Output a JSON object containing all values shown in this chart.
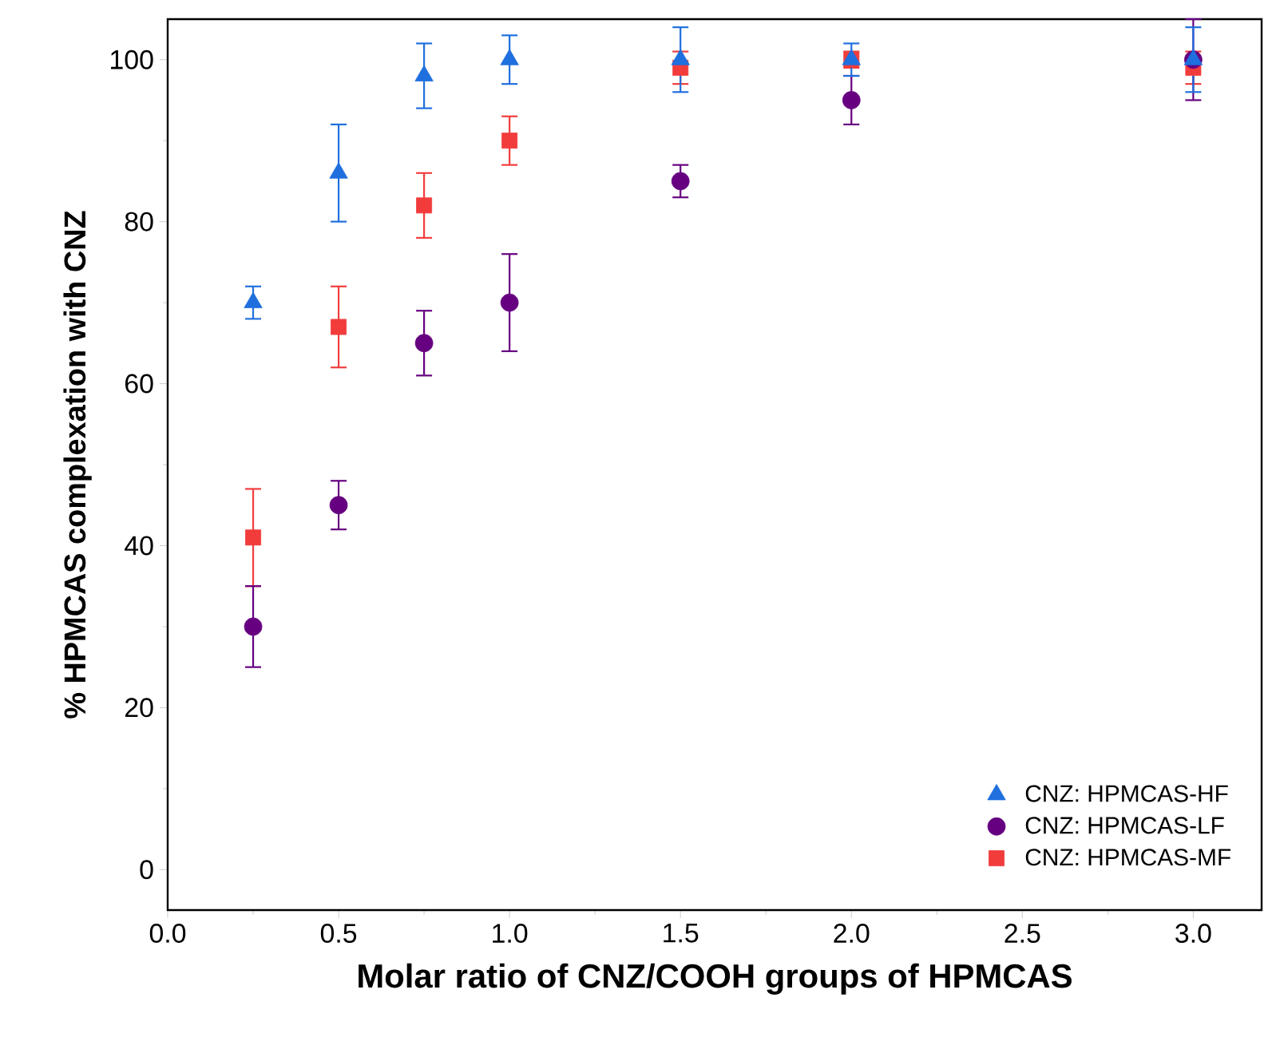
{
  "chart_data": {
    "type": "scatter",
    "xlabel": "Molar ratio of CNZ/COOH groups of HPMCAS",
    "ylabel": "% HPMCAS complexation with CNZ",
    "x": [
      0.25,
      0.5,
      0.75,
      1.0,
      1.5,
      2.0,
      3.0
    ],
    "series": [
      {
        "name": "CNZ: HPMCAS-HF",
        "color": "#1f6fde",
        "marker": "triangle",
        "values": [
          70,
          86,
          98,
          100,
          100,
          100,
          100
        ],
        "errors": [
          2,
          6,
          4,
          3,
          4,
          2,
          4
        ]
      },
      {
        "name": "CNZ: HPMCAS-LF",
        "color": "#660080",
        "marker": "circle",
        "values": [
          30,
          45,
          65,
          70,
          85,
          95,
          100
        ],
        "errors": [
          5,
          3,
          4,
          6,
          2,
          3,
          5
        ]
      },
      {
        "name": "CNZ: HPMCAS-MF",
        "color": "#f23c3c",
        "marker": "square",
        "values": [
          41,
          67,
          82,
          90,
          99,
          100,
          99
        ],
        "errors": [
          6,
          5,
          4,
          3,
          2,
          1,
          2
        ]
      }
    ],
    "xlim": [
      0,
      3.2
    ],
    "ylim": [
      -5,
      105
    ],
    "xticks": [
      {
        "value": 0,
        "label": "0.0"
      },
      {
        "value": 0.5,
        "label": "0.5"
      },
      {
        "value": 1.0,
        "label": "1.0"
      },
      {
        "value": 1.5,
        "label": "1.5"
      },
      {
        "value": 2.0,
        "label": "2.0"
      },
      {
        "value": 2.5,
        "label": "2.5"
      },
      {
        "value": 3.0,
        "label": "3.0"
      }
    ],
    "yticks": [
      0,
      20,
      40,
      60,
      80,
      100
    ],
    "grid": false,
    "legend": "bottom right"
  }
}
